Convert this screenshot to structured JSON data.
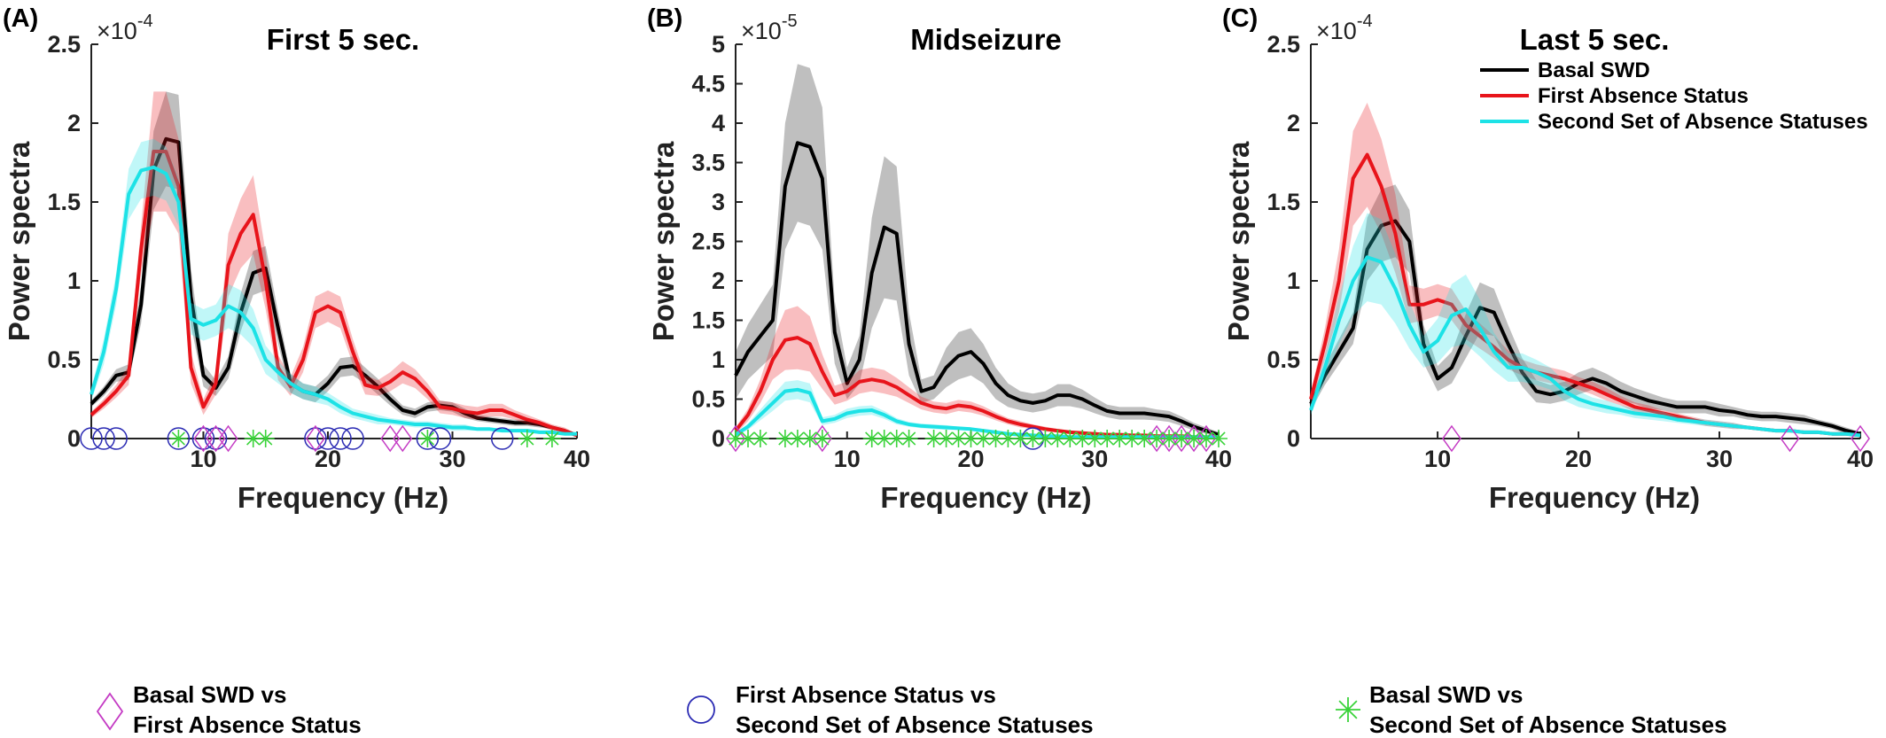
{
  "colors": {
    "basal": "#000000",
    "first": "#e8141b",
    "second": "#1de2e6",
    "diamond": "#c43ac4",
    "circle": "#2a2ab3",
    "star": "#3ad33a",
    "axis": "#222222"
  },
  "legend": [
    "Basal SWD",
    "First Absence Status",
    "Second Set of Absence Statuses"
  ],
  "keys": [
    {
      "marker": "diamond",
      "line1": "Basal SWD vs",
      "line2": "First Absence Status"
    },
    {
      "marker": "circle",
      "line1": "First Absence Status vs",
      "line2": "Second Set of Absence Statuses"
    },
    {
      "marker": "star",
      "line1": "Basal SWD vs",
      "line2": "Second Set of Absence Statuses"
    }
  ],
  "chart_data": [
    {
      "panel_label": "(A)",
      "type": "line",
      "title": "First 5 sec.",
      "xlabel": "Frequency (Hz)",
      "ylabel": "Power spectra",
      "exponent": "-4",
      "scale": 0.0001,
      "xlim": [
        1,
        40
      ],
      "ylim": [
        0,
        2.5
      ],
      "xticks": [
        10,
        20,
        30,
        40
      ],
      "yticks": [
        0,
        0.5,
        1,
        1.5,
        2,
        2.5
      ],
      "ytick_labels": [
        "0",
        "0.5",
        "1",
        "1.5",
        "2",
        "2.5"
      ],
      "x": [
        1,
        2,
        3,
        4,
        5,
        6,
        7,
        8,
        9,
        10,
        11,
        12,
        13,
        14,
        15,
        16,
        17,
        18,
        19,
        20,
        21,
        22,
        23,
        24,
        25,
        26,
        27,
        28,
        29,
        30,
        31,
        32,
        33,
        34,
        35,
        36,
        37,
        38,
        39,
        40
      ],
      "series": [
        {
          "name": "Basal SWD",
          "color_key": "basal",
          "values": [
            0.22,
            0.3,
            0.4,
            0.42,
            0.85,
            1.7,
            1.9,
            1.88,
            0.9,
            0.4,
            0.32,
            0.45,
            0.8,
            1.05,
            1.08,
            0.7,
            0.35,
            0.3,
            0.28,
            0.35,
            0.45,
            0.46,
            0.4,
            0.33,
            0.25,
            0.18,
            0.16,
            0.2,
            0.21,
            0.2,
            0.16,
            0.13,
            0.12,
            0.11,
            0.1,
            0.1,
            0.09,
            0.07,
            0.05,
            0.02
          ],
          "err": [
            0.02,
            0.03,
            0.04,
            0.05,
            0.12,
            0.25,
            0.3,
            0.3,
            0.18,
            0.07,
            0.05,
            0.07,
            0.12,
            0.14,
            0.14,
            0.1,
            0.06,
            0.05,
            0.05,
            0.05,
            0.06,
            0.06,
            0.05,
            0.05,
            0.04,
            0.03,
            0.03,
            0.03,
            0.03,
            0.03,
            0.03,
            0.02,
            0.02,
            0.02,
            0.02,
            0.02,
            0.02,
            0.01,
            0.01,
            0.01
          ]
        },
        {
          "name": "First Absence Status",
          "color_key": "first",
          "values": [
            0.15,
            0.22,
            0.3,
            0.4,
            1.2,
            1.82,
            1.82,
            1.6,
            0.45,
            0.2,
            0.35,
            1.1,
            1.3,
            1.42,
            1.0,
            0.45,
            0.33,
            0.5,
            0.8,
            0.84,
            0.8,
            0.55,
            0.34,
            0.32,
            0.36,
            0.42,
            0.38,
            0.3,
            0.2,
            0.19,
            0.17,
            0.16,
            0.18,
            0.18,
            0.15,
            0.12,
            0.1,
            0.07,
            0.05,
            0.02
          ],
          "err": [
            0.02,
            0.03,
            0.04,
            0.06,
            0.15,
            0.38,
            0.38,
            0.3,
            0.1,
            0.05,
            0.07,
            0.2,
            0.22,
            0.25,
            0.18,
            0.08,
            0.06,
            0.08,
            0.1,
            0.1,
            0.1,
            0.08,
            0.06,
            0.05,
            0.06,
            0.07,
            0.06,
            0.05,
            0.04,
            0.04,
            0.04,
            0.04,
            0.04,
            0.04,
            0.03,
            0.03,
            0.02,
            0.02,
            0.02,
            0.01
          ]
        },
        {
          "name": "Second Set of Absence Statuses",
          "color_key": "second",
          "values": [
            0.28,
            0.55,
            0.95,
            1.55,
            1.7,
            1.72,
            1.68,
            1.5,
            0.76,
            0.72,
            0.75,
            0.84,
            0.8,
            0.7,
            0.5,
            0.42,
            0.35,
            0.3,
            0.28,
            0.25,
            0.2,
            0.16,
            0.14,
            0.12,
            0.11,
            0.1,
            0.09,
            0.09,
            0.08,
            0.07,
            0.07,
            0.06,
            0.06,
            0.05,
            0.05,
            0.05,
            0.04,
            0.04,
            0.03,
            0.03
          ],
          "err": [
            0.04,
            0.08,
            0.1,
            0.16,
            0.18,
            0.18,
            0.17,
            0.15,
            0.1,
            0.1,
            0.1,
            0.14,
            0.14,
            0.12,
            0.09,
            0.07,
            0.06,
            0.05,
            0.05,
            0.04,
            0.04,
            0.03,
            0.03,
            0.03,
            0.02,
            0.02,
            0.02,
            0.02,
            0.02,
            0.02,
            0.02,
            0.01,
            0.01,
            0.01,
            0.01,
            0.01,
            0.01,
            0.01,
            0.01,
            0.01
          ]
        }
      ],
      "markers": {
        "diamond": [
          10,
          11,
          12,
          19,
          25,
          26
        ],
        "circle": [
          1,
          2,
          3,
          8,
          10,
          11,
          19,
          20,
          21,
          22,
          28,
          29,
          34
        ],
        "star": [
          8,
          14,
          15,
          28,
          36,
          38
        ]
      }
    },
    {
      "panel_label": "(B)",
      "type": "line",
      "title": "Midseizure",
      "xlabel": "Frequency (Hz)",
      "ylabel": "Power spectra",
      "exponent": "-5",
      "scale": 1e-05,
      "xlim": [
        1,
        40
      ],
      "ylim": [
        0,
        5
      ],
      "xticks": [
        10,
        20,
        30,
        40
      ],
      "yticks": [
        0,
        0.5,
        1,
        1.5,
        2,
        2.5,
        3,
        3.5,
        4,
        4.5,
        5
      ],
      "ytick_labels": [
        "0",
        "0.5",
        "1",
        "1.5",
        "2",
        "2.5",
        "3",
        "3.5",
        "4",
        "4.5",
        "5"
      ],
      "x": [
        1,
        2,
        3,
        4,
        5,
        6,
        7,
        8,
        9,
        10,
        11,
        12,
        13,
        14,
        15,
        16,
        17,
        18,
        19,
        20,
        21,
        22,
        23,
        24,
        25,
        26,
        27,
        28,
        29,
        30,
        31,
        32,
        33,
        34,
        35,
        36,
        37,
        38,
        39,
        40
      ],
      "series": [
        {
          "name": "Basal SWD",
          "color_key": "basal",
          "values": [
            0.8,
            1.1,
            1.3,
            1.5,
            3.2,
            3.75,
            3.7,
            3.3,
            1.35,
            0.7,
            1.0,
            2.1,
            2.68,
            2.6,
            1.2,
            0.6,
            0.65,
            0.9,
            1.05,
            1.1,
            0.95,
            0.7,
            0.55,
            0.48,
            0.45,
            0.48,
            0.55,
            0.55,
            0.5,
            0.42,
            0.35,
            0.32,
            0.32,
            0.32,
            0.3,
            0.28,
            0.22,
            0.15,
            0.1,
            0.05
          ],
          "err": [
            0.3,
            0.35,
            0.4,
            0.45,
            0.8,
            1.0,
            1.0,
            0.9,
            0.4,
            0.2,
            0.3,
            0.7,
            0.9,
            0.85,
            0.4,
            0.15,
            0.15,
            0.25,
            0.3,
            0.3,
            0.25,
            0.2,
            0.15,
            0.12,
            0.12,
            0.12,
            0.14,
            0.14,
            0.12,
            0.1,
            0.08,
            0.08,
            0.08,
            0.08,
            0.07,
            0.07,
            0.06,
            0.05,
            0.04,
            0.03
          ]
        },
        {
          "name": "First Absence Status",
          "color_key": "first",
          "values": [
            0.1,
            0.3,
            0.6,
            1.0,
            1.25,
            1.28,
            1.2,
            0.85,
            0.55,
            0.6,
            0.72,
            0.75,
            0.72,
            0.65,
            0.55,
            0.45,
            0.4,
            0.38,
            0.42,
            0.4,
            0.35,
            0.28,
            0.22,
            0.18,
            0.15,
            0.12,
            0.1,
            0.08,
            0.07,
            0.06,
            0.05,
            0.05,
            0.04,
            0.04,
            0.03,
            0.03,
            0.03,
            0.02,
            0.02,
            0.02
          ],
          "err": [
            0.04,
            0.08,
            0.15,
            0.25,
            0.38,
            0.4,
            0.35,
            0.22,
            0.12,
            0.12,
            0.15,
            0.15,
            0.15,
            0.12,
            0.1,
            0.08,
            0.07,
            0.07,
            0.07,
            0.07,
            0.06,
            0.05,
            0.04,
            0.04,
            0.03,
            0.03,
            0.02,
            0.02,
            0.02,
            0.02,
            0.01,
            0.01,
            0.01,
            0.01,
            0.01,
            0.01,
            0.01,
            0.01,
            0.01,
            0.01
          ]
        },
        {
          "name": "Second Set of Absence Statuses",
          "color_key": "second",
          "values": [
            0.05,
            0.15,
            0.3,
            0.45,
            0.6,
            0.62,
            0.58,
            0.22,
            0.25,
            0.32,
            0.35,
            0.36,
            0.3,
            0.22,
            0.18,
            0.16,
            0.15,
            0.14,
            0.13,
            0.12,
            0.1,
            0.08,
            0.06,
            0.05,
            0.04,
            0.03,
            0.03,
            0.02,
            0.02,
            0.02,
            0.02,
            0.02,
            0.02,
            0.02,
            0.02,
            0.02,
            0.02,
            0.02,
            0.02,
            0.02
          ],
          "err": [
            0.02,
            0.04,
            0.07,
            0.1,
            0.12,
            0.12,
            0.12,
            0.05,
            0.05,
            0.06,
            0.06,
            0.06,
            0.05,
            0.04,
            0.03,
            0.03,
            0.03,
            0.03,
            0.02,
            0.02,
            0.02,
            0.02,
            0.01,
            0.01,
            0.01,
            0.01,
            0.01,
            0.01,
            0.01,
            0.01,
            0.01,
            0.01,
            0.01,
            0.01,
            0.01,
            0.01,
            0.01,
            0.01,
            0.01,
            0.01
          ]
        }
      ],
      "markers": {
        "diamond": [
          1,
          8,
          35,
          36,
          37,
          38,
          39
        ],
        "circle": [
          25
        ],
        "star": [
          1,
          2,
          3,
          5,
          6,
          7,
          8,
          12,
          13,
          14,
          15,
          17,
          18,
          19,
          20,
          21,
          22,
          23,
          24,
          25,
          26,
          27,
          28,
          29,
          30,
          31,
          32,
          33,
          34,
          35,
          36,
          37,
          38,
          39,
          40
        ]
      }
    },
    {
      "panel_label": "(C)",
      "type": "line",
      "title": "Last 5 sec.",
      "xlabel": "Frequency (Hz)",
      "ylabel": "Power spectra",
      "exponent": "-4",
      "scale": 0.0001,
      "xlim": [
        1,
        40
      ],
      "ylim": [
        0,
        2.5
      ],
      "xticks": [
        10,
        20,
        30,
        40
      ],
      "yticks": [
        0,
        0.5,
        1,
        1.5,
        2,
        2.5
      ],
      "ytick_labels": [
        "0",
        "0.5",
        "1",
        "1.5",
        "2",
        "2.5"
      ],
      "legend_position": "top-right",
      "x": [
        1,
        2,
        3,
        4,
        5,
        6,
        7,
        8,
        9,
        10,
        11,
        12,
        13,
        14,
        15,
        16,
        17,
        18,
        19,
        20,
        21,
        22,
        23,
        24,
        25,
        26,
        27,
        28,
        29,
        30,
        31,
        32,
        33,
        34,
        35,
        36,
        37,
        38,
        39,
        40
      ],
      "series": [
        {
          "name": "Basal SWD",
          "color_key": "basal",
          "values": [
            0.22,
            0.4,
            0.55,
            0.7,
            1.2,
            1.35,
            1.38,
            1.25,
            0.6,
            0.38,
            0.45,
            0.65,
            0.83,
            0.8,
            0.6,
            0.42,
            0.3,
            0.28,
            0.3,
            0.35,
            0.38,
            0.35,
            0.3,
            0.27,
            0.24,
            0.22,
            0.2,
            0.2,
            0.2,
            0.18,
            0.17,
            0.15,
            0.14,
            0.14,
            0.13,
            0.12,
            0.1,
            0.08,
            0.05,
            0.03
          ],
          "err": [
            0.04,
            0.06,
            0.08,
            0.1,
            0.2,
            0.23,
            0.23,
            0.2,
            0.12,
            0.08,
            0.1,
            0.14,
            0.16,
            0.15,
            0.12,
            0.09,
            0.07,
            0.06,
            0.06,
            0.07,
            0.07,
            0.06,
            0.06,
            0.05,
            0.05,
            0.04,
            0.04,
            0.04,
            0.04,
            0.04,
            0.03,
            0.03,
            0.03,
            0.03,
            0.03,
            0.03,
            0.02,
            0.02,
            0.02,
            0.01
          ]
        },
        {
          "name": "First Absence Status",
          "color_key": "first",
          "values": [
            0.25,
            0.6,
            1.0,
            1.65,
            1.8,
            1.6,
            1.3,
            0.85,
            0.85,
            0.88,
            0.85,
            0.72,
            0.65,
            0.58,
            0.5,
            0.45,
            0.42,
            0.4,
            0.38,
            0.35,
            0.32,
            0.28,
            0.24,
            0.2,
            0.18,
            0.16,
            0.14,
            0.12,
            0.1,
            0.09,
            0.08,
            0.07,
            0.06,
            0.05,
            0.05,
            0.04,
            0.04,
            0.03,
            0.03,
            0.02
          ],
          "err": [
            0.04,
            0.1,
            0.2,
            0.3,
            0.33,
            0.3,
            0.25,
            0.12,
            0.1,
            0.1,
            0.1,
            0.09,
            0.08,
            0.07,
            0.06,
            0.05,
            0.05,
            0.05,
            0.05,
            0.04,
            0.04,
            0.04,
            0.03,
            0.03,
            0.03,
            0.02,
            0.02,
            0.02,
            0.02,
            0.02,
            0.02,
            0.01,
            0.01,
            0.01,
            0.01,
            0.01,
            0.01,
            0.01,
            0.01,
            0.01
          ]
        },
        {
          "name": "Second Set of Absence Statuses",
          "color_key": "second",
          "values": [
            0.18,
            0.45,
            0.75,
            1.0,
            1.15,
            1.12,
            0.95,
            0.72,
            0.55,
            0.62,
            0.78,
            0.82,
            0.7,
            0.55,
            0.45,
            0.45,
            0.42,
            0.38,
            0.3,
            0.25,
            0.22,
            0.2,
            0.18,
            0.16,
            0.15,
            0.14,
            0.12,
            0.11,
            0.1,
            0.09,
            0.08,
            0.07,
            0.06,
            0.05,
            0.05,
            0.04,
            0.04,
            0.03,
            0.03,
            0.02
          ],
          "err": [
            0.03,
            0.08,
            0.15,
            0.22,
            0.28,
            0.27,
            0.22,
            0.15,
            0.1,
            0.14,
            0.2,
            0.22,
            0.18,
            0.12,
            0.09,
            0.09,
            0.08,
            0.07,
            0.06,
            0.05,
            0.04,
            0.04,
            0.03,
            0.03,
            0.03,
            0.03,
            0.02,
            0.02,
            0.02,
            0.02,
            0.02,
            0.01,
            0.01,
            0.01,
            0.01,
            0.01,
            0.01,
            0.01,
            0.01,
            0.01
          ]
        }
      ],
      "markers": {
        "diamond": [
          11,
          35,
          40
        ],
        "circle": [],
        "star": []
      }
    }
  ]
}
